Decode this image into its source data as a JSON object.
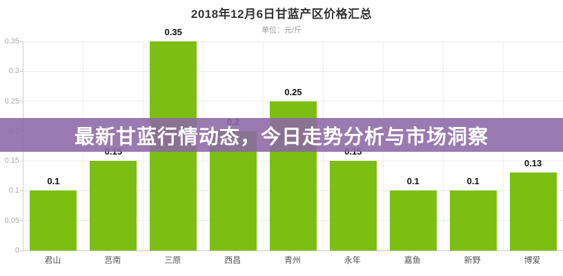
{
  "header": {
    "title": "2018年12月6日甘蓝产区价格汇总",
    "subtitle": "单位：元/斤"
  },
  "banner": {
    "text": "最新甘蓝行情动态，今日走势分析与市场洞察"
  },
  "colors": {
    "bar": "#7dbe12",
    "banner_overlay_rgba": "rgba(140,104,165,0.88)",
    "banner_text": "#ffffff",
    "title_text": "#333333",
    "subtitle_text": "#999999",
    "axis_line": "#cccccc",
    "gridline": "#ebebeb"
  },
  "chart_data": {
    "type": "bar",
    "title": "2018年12月6日甘蓝产区价格汇总",
    "unit_label": "单位：元/斤",
    "xlabel": "",
    "ylabel": "",
    "categories": [
      "君山",
      "莒南",
      "三原",
      "西昌",
      "青州",
      "永年",
      "嘉鱼",
      "新野",
      "博爱"
    ],
    "values": [
      0.1,
      0.15,
      0.35,
      0.2,
      0.25,
      0.15,
      0.1,
      0.1,
      0.13
    ],
    "value_labels": [
      "0.1",
      "0.15",
      "0.35",
      "0.2",
      "0.25",
      "0.15",
      "0.1",
      "0.1",
      "0.13"
    ],
    "ylim": [
      0,
      0.35
    ],
    "yticks": [
      0,
      0.05,
      0.1,
      0.15,
      0.2,
      0.25,
      0.3,
      0.35
    ],
    "ytick_labels": [
      "0",
      "0.05",
      "0.1",
      "0.15",
      "0.2",
      "0.25",
      "0.3",
      "0.35"
    ],
    "grid": true,
    "legend": null,
    "bar_color": "#7dbe12"
  }
}
